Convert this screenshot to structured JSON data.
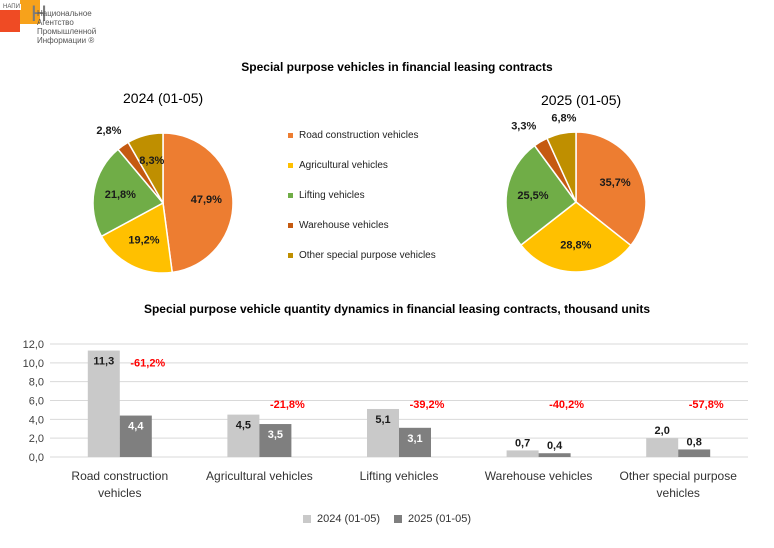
{
  "logo": {
    "small_text": "НАПИ",
    "letter": "Н",
    "text_lines": [
      "Национальное",
      "Агентство",
      "Промышленной",
      "Информации ®"
    ]
  },
  "colors": {
    "road": "#ed7d31",
    "agri": "#ffc000",
    "lift": "#70ad47",
    "ware": "#c55a11",
    "other": "#bf8f00",
    "bar2024": "#c9c9c9",
    "bar2025": "#7f7f7f",
    "change": "#ff0000"
  },
  "pie_section_title": "Special purpose vehicles in financial leasing contracts",
  "bar_section_title": "Special purpose vehicle quantity dynamics in financial leasing contracts, thousand units",
  "legend": {
    "items": [
      {
        "label": "Road construction vehicles",
        "color": "#ed7d31"
      },
      {
        "label": "Agricultural vehicles",
        "color": "#ffc000"
      },
      {
        "label": "Lifting vehicles",
        "color": "#70ad47"
      },
      {
        "label": "Warehouse vehicles",
        "color": "#c55a11"
      },
      {
        "label": "Other special purpose vehicles",
        "color": "#bf8f00"
      }
    ]
  },
  "bar_legend": {
    "s2024": "2024 (01-05)",
    "s2025": "2025 (01-05)"
  },
  "chart_data": [
    {
      "type": "pie",
      "title": "2024 (01-05)",
      "categories": [
        "Road construction vehicles",
        "Agricultural vehicles",
        "Lifting vehicles",
        "Warehouse vehicles",
        "Other special purpose vehicles"
      ],
      "values": [
        47.9,
        19.2,
        21.8,
        2.8,
        8.3
      ],
      "labels": [
        "47,9%",
        "19,2%",
        "21,8%",
        "2,8%",
        "8,3%"
      ]
    },
    {
      "type": "pie",
      "title": "2025 (01-05)",
      "categories": [
        "Road construction vehicles",
        "Agricultural vehicles",
        "Lifting vehicles",
        "Warehouse vehicles",
        "Other special purpose vehicles"
      ],
      "values": [
        35.7,
        28.8,
        25.5,
        3.3,
        6.8
      ],
      "labels": [
        "35,7%",
        "28,8%",
        "25,5%",
        "3,3%",
        "6,8%"
      ]
    },
    {
      "type": "bar",
      "title": "Special purpose vehicle quantity dynamics in financial leasing contracts, thousand units",
      "categories": [
        "Road construction vehicles",
        "Agricultural vehicles",
        "Lifting vehicles",
        "Warehouse vehicles",
        "Other special purpose vehicles"
      ],
      "category_lines": [
        [
          "Road construction",
          "vehicles"
        ],
        [
          "Agricultural vehicles"
        ],
        [
          "Lifting vehicles"
        ],
        [
          "Warehouse vehicles"
        ],
        [
          "Other special purpose",
          "vehicles"
        ]
      ],
      "series": [
        {
          "name": "2024 (01-05)",
          "values": [
            11.3,
            4.5,
            5.1,
            0.7,
            2.0
          ],
          "labels": [
            "11,3",
            "4,5",
            "5,1",
            "0,7",
            "2,0"
          ]
        },
        {
          "name": "2025 (01-05)",
          "values": [
            4.4,
            3.5,
            3.1,
            0.4,
            0.8
          ],
          "labels": [
            "4,4",
            "3,5",
            "3,1",
            "0,4",
            "0,8"
          ]
        }
      ],
      "changes": [
        "-61,2%",
        "-21,8%",
        "-39,2%",
        "-40,2%",
        "-57,8%"
      ],
      "ylim": [
        0,
        12
      ],
      "yticks": [
        0,
        2,
        4,
        6,
        8,
        10,
        12
      ],
      "ytick_labels": [
        "0,0",
        "2,0",
        "4,0",
        "6,0",
        "8,0",
        "10,0",
        "12,0"
      ],
      "grid": true,
      "legend_position": "bottom"
    }
  ]
}
